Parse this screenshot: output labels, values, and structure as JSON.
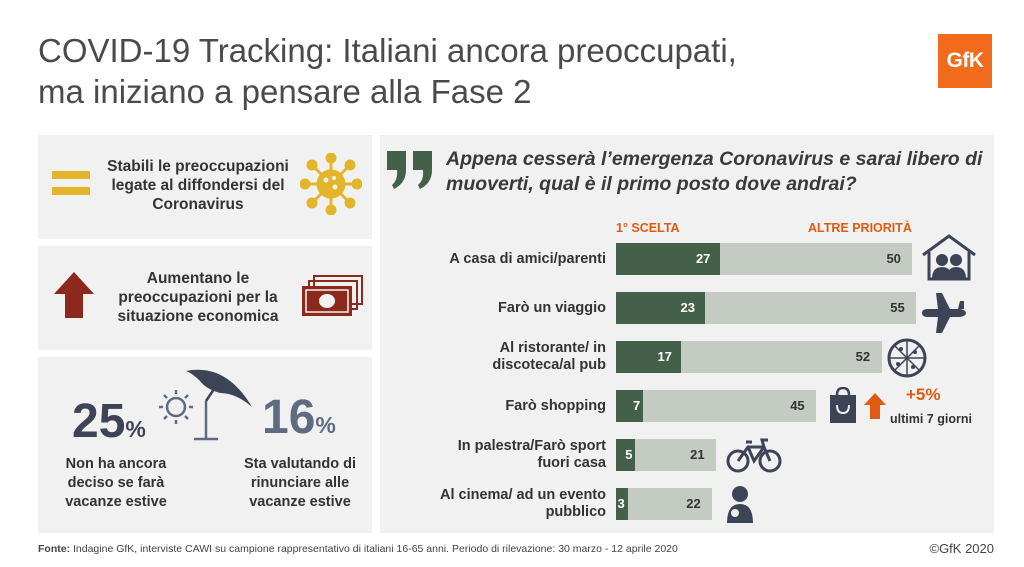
{
  "title": {
    "line1": "COVID-19 Tracking: Italiani ancora preoccupati,",
    "line2": "ma iniziano a pensare alla Fase 2"
  },
  "logo": "GfK",
  "panels": {
    "stable": {
      "text": "Stabili le preoccupazioni legate al diffondersi del Coronavirus",
      "icon": "equals-icon",
      "color": "#e2b52a"
    },
    "economy": {
      "text": "Aumentano le preoccupazioni per la situazione economica",
      "icon": "arrow-up-icon",
      "color": "#8b2a1c"
    },
    "holidays": {
      "stat1_value": "25",
      "stat1_unit": "%",
      "stat1_label": "Non ha ancora deciso se farà vacanze estive",
      "stat2_value": "16",
      "stat2_unit": "%",
      "stat2_label": "Sta valutando di rinunciare alle vacanze estive"
    }
  },
  "chart_data": {
    "type": "bar",
    "stacked": true,
    "orientation": "horizontal",
    "title": "Appena cesserà l’emergenza Coronavirus e sarai libero di muoverti, qual è il primo posto dove andrai?",
    "categories": [
      "A casa di amici/parenti",
      "Farò un viaggio",
      "Al ristorante/ in discoteca/al pub",
      "Farò shopping",
      "In palestra/Farò sport fuori casa",
      "Al cinema/ ad un evento pubblico"
    ],
    "series": [
      {
        "name": "1° SCELTA",
        "color": "#44604a",
        "values": [
          27,
          23,
          17,
          7,
          5,
          3
        ]
      },
      {
        "name": "ALTRE PRIORITÀ",
        "color": "#c3cbc2",
        "values": [
          50,
          55,
          52,
          45,
          21,
          22
        ]
      }
    ],
    "annotation": {
      "value": "+5%",
      "label": "ultimi 7 giorni",
      "category": "Farò shopping"
    }
  },
  "footer": {
    "label": "Fonte:",
    "text": " Indagine GfK, interviste CAWI su campione rappresentativo di italiani 16-65 anni. Periodo di rilevazione: 30 marzo - 12 aprile 2020"
  },
  "copyright": "©GfK 2020"
}
